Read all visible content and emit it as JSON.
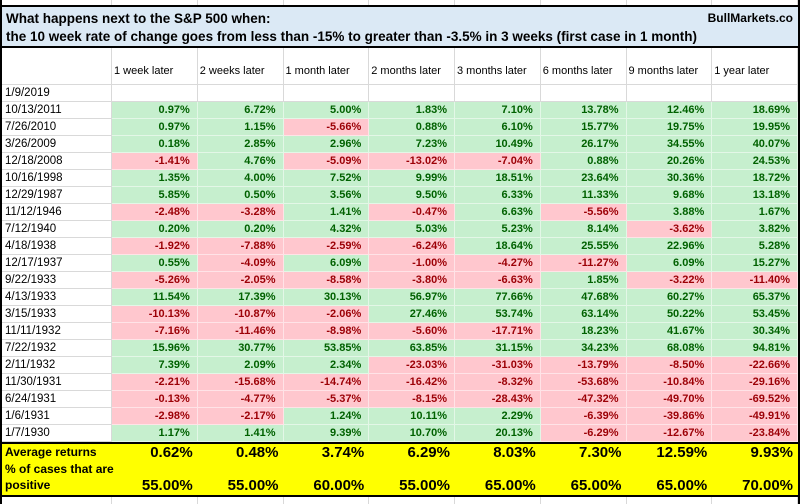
{
  "header": {
    "title_line1": "What happens next to the S&P 500 when:",
    "title_line2": "the 10 week rate of change goes from less than -15% to greater than -3.5% in 3 weeks (first case in 1 month)",
    "brand": "BullMarkets.co"
  },
  "colors": {
    "title_bg": "#dbe9f5",
    "positive_bg": "#c6efce",
    "positive_text": "#006100",
    "negative_bg": "#ffc7ce",
    "negative_text": "#9c0006",
    "summary_bg": "#ffff00",
    "gridline": "#d9d9d9"
  },
  "table": {
    "columns": [
      "1 week later",
      "2 weeks later",
      "1 month later",
      "2 months later",
      "3 months later",
      "6 months later",
      "9 months later",
      "1 year later"
    ],
    "rows": [
      {
        "date": "1/9/2019",
        "values": []
      },
      {
        "date": "10/13/2011",
        "values": [
          "0.97%",
          "6.72%",
          "5.00%",
          "1.83%",
          "7.10%",
          "13.78%",
          "12.46%",
          "18.69%"
        ]
      },
      {
        "date": "7/26/2010",
        "values": [
          "0.97%",
          "1.15%",
          "-5.66%",
          "0.88%",
          "6.10%",
          "15.77%",
          "19.75%",
          "19.95%"
        ]
      },
      {
        "date": "3/26/2009",
        "values": [
          "0.18%",
          "2.85%",
          "2.96%",
          "7.23%",
          "10.49%",
          "26.17%",
          "34.55%",
          "40.07%"
        ]
      },
      {
        "date": "12/18/2008",
        "values": [
          "-1.41%",
          "4.76%",
          "-5.09%",
          "-13.02%",
          "-7.04%",
          "0.88%",
          "20.26%",
          "24.53%"
        ]
      },
      {
        "date": "10/16/1998",
        "values": [
          "1.35%",
          "4.00%",
          "7.52%",
          "9.99%",
          "18.51%",
          "23.64%",
          "30.36%",
          "18.72%"
        ]
      },
      {
        "date": "12/29/1987",
        "values": [
          "5.85%",
          "0.50%",
          "3.56%",
          "9.50%",
          "6.33%",
          "11.33%",
          "9.68%",
          "13.18%"
        ]
      },
      {
        "date": "11/12/1946",
        "values": [
          "-2.48%",
          "-3.28%",
          "1.41%",
          "-0.47%",
          "6.63%",
          "-5.56%",
          "3.88%",
          "1.67%"
        ]
      },
      {
        "date": "7/12/1940",
        "values": [
          "0.20%",
          "0.20%",
          "4.32%",
          "5.03%",
          "5.23%",
          "8.14%",
          "-3.62%",
          "3.82%"
        ]
      },
      {
        "date": "4/18/1938",
        "values": [
          "-1.92%",
          "-7.88%",
          "-2.59%",
          "-6.24%",
          "18.64%",
          "25.55%",
          "22.96%",
          "5.28%"
        ]
      },
      {
        "date": "12/17/1937",
        "values": [
          "0.55%",
          "-4.09%",
          "6.09%",
          "-1.00%",
          "-4.27%",
          "-11.27%",
          "6.09%",
          "15.27%"
        ]
      },
      {
        "date": "9/22/1933",
        "values": [
          "-5.26%",
          "-2.05%",
          "-8.58%",
          "-3.80%",
          "-6.63%",
          "1.85%",
          "-3.22%",
          "-11.40%"
        ]
      },
      {
        "date": "4/13/1933",
        "values": [
          "11.54%",
          "17.39%",
          "30.13%",
          "56.97%",
          "77.66%",
          "47.68%",
          "60.27%",
          "65.37%"
        ]
      },
      {
        "date": "3/15/1933",
        "values": [
          "-10.13%",
          "-10.87%",
          "-2.06%",
          "27.46%",
          "53.74%",
          "63.14%",
          "50.22%",
          "53.45%"
        ]
      },
      {
        "date": "11/11/1932",
        "values": [
          "-7.16%",
          "-11.46%",
          "-8.98%",
          "-5.60%",
          "-17.71%",
          "18.23%",
          "41.67%",
          "30.34%"
        ]
      },
      {
        "date": "7/22/1932",
        "values": [
          "15.96%",
          "30.77%",
          "53.85%",
          "63.85%",
          "31.15%",
          "34.23%",
          "68.08%",
          "94.81%"
        ]
      },
      {
        "date": "2/11/1932",
        "values": [
          "7.39%",
          "2.09%",
          "2.34%",
          "-23.03%",
          "-31.03%",
          "-13.79%",
          "-8.50%",
          "-22.66%"
        ]
      },
      {
        "date": "11/30/1931",
        "values": [
          "-2.21%",
          "-15.68%",
          "-14.74%",
          "-16.42%",
          "-8.32%",
          "-53.68%",
          "-10.84%",
          "-29.16%"
        ]
      },
      {
        "date": "6/24/1931",
        "values": [
          "-0.13%",
          "-4.77%",
          "-5.37%",
          "-8.15%",
          "-28.43%",
          "-47.32%",
          "-49.70%",
          "-69.52%"
        ]
      },
      {
        "date": "1/6/1931",
        "values": [
          "-2.98%",
          "-2.17%",
          "1.24%",
          "10.11%",
          "2.29%",
          "-6.39%",
          "-39.86%",
          "-49.91%"
        ]
      },
      {
        "date": "1/7/1930",
        "values": [
          "1.17%",
          "1.41%",
          "9.39%",
          "10.70%",
          "20.13%",
          "-6.29%",
          "-12.67%",
          "-23.84%"
        ]
      }
    ],
    "summary": {
      "average_label": "Average returns",
      "average_values": [
        "0.62%",
        "0.48%",
        "3.74%",
        "6.29%",
        "8.03%",
        "7.30%",
        "12.59%",
        "9.93%"
      ],
      "pct_label_line1": "% of cases that are",
      "pct_label_line2": "positive",
      "pct_values": [
        "55.00%",
        "55.00%",
        "60.00%",
        "55.00%",
        "65.00%",
        "65.00%",
        "65.00%",
        "70.00%"
      ]
    }
  }
}
